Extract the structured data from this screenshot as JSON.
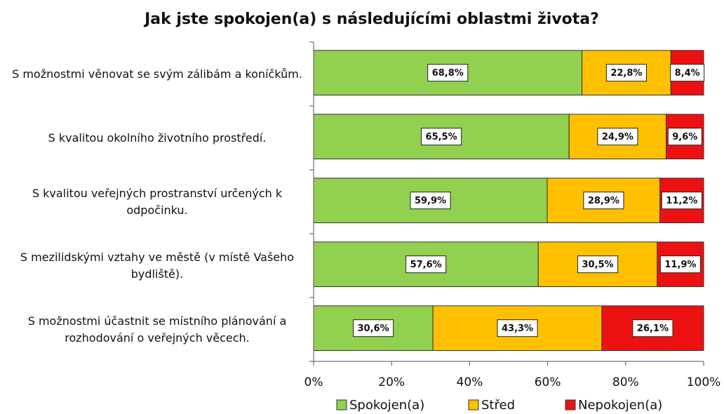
{
  "chart_data": {
    "type": "stacked_bar_horizontal",
    "title": "Jak jste spokojen(a) s následujícími oblastmi života?",
    "categories": [
      "S možnostmi věnovat se svým zálibám a koníčkům.",
      "S kvalitou okolního životního prostředí.",
      "S kvalitou veřejných prostranství určených k odpočinku.",
      "S mezilidskými vztahy ve městě (v místě Vašeho bydliště).",
      "S možnostmi účastnit se místního plánování a rozhodování o veřejných věcech."
    ],
    "series": [
      {
        "name": "Spokojen(a)",
        "color": "#92d050",
        "values": [
          68.8,
          65.5,
          59.9,
          57.6,
          30.6
        ],
        "value_labels": [
          "68,8%",
          "65,5%",
          "59,9%",
          "57,6%",
          "30,6%"
        ]
      },
      {
        "name": "Střed",
        "color": "#ffc000",
        "values": [
          22.8,
          24.9,
          28.9,
          30.5,
          43.3
        ],
        "value_labels": [
          "22,8%",
          "24,9%",
          "28,9%",
          "30,5%",
          "43,3%"
        ]
      },
      {
        "name": "Nepokojen(a)",
        "color": "#ee1111",
        "values": [
          8.4,
          9.6,
          11.2,
          11.9,
          26.1
        ],
        "value_labels": [
          "8,4%",
          "9,6%",
          "11,2%",
          "11,9%",
          "26,1%"
        ]
      }
    ],
    "xlim": [
      0,
      100
    ],
    "xticks": [
      {
        "value": 0,
        "label": "0%"
      },
      {
        "value": 20,
        "label": "20%"
      },
      {
        "value": 40,
        "label": "40%"
      },
      {
        "value": 60,
        "label": "60%"
      },
      {
        "value": 80,
        "label": "80%"
      },
      {
        "value": 100,
        "label": "100%"
      }
    ],
    "legend": "bottom"
  }
}
